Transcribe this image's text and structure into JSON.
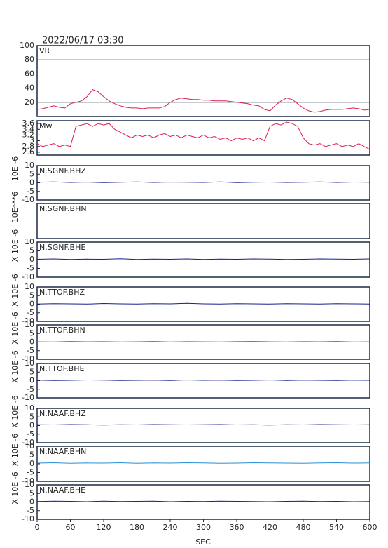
{
  "title": "2022/06/17 03:30",
  "xlabel": "SEC",
  "chart_data": [
    {
      "type": "line",
      "title": "VR",
      "xlim": [
        0,
        600
      ],
      "ylim": [
        0,
        100
      ],
      "yticks": [
        20,
        40,
        60,
        80,
        100
      ],
      "grid": true,
      "x": [
        0,
        10,
        20,
        30,
        40,
        50,
        60,
        70,
        80,
        90,
        100,
        110,
        120,
        130,
        140,
        150,
        160,
        170,
        180,
        190,
        200,
        210,
        220,
        230,
        240,
        250,
        260,
        270,
        280,
        290,
        300,
        310,
        320,
        330,
        340,
        350,
        360,
        370,
        380,
        390,
        400,
        410,
        420,
        430,
        440,
        450,
        460,
        470,
        480,
        490,
        500,
        510,
        520,
        530,
        540,
        550,
        560,
        570,
        580,
        590,
        600
      ],
      "series": [
        {
          "color": "#dc1f4b",
          "values": [
            10,
            11,
            13,
            15,
            13,
            12,
            18,
            20,
            22,
            28,
            38,
            35,
            28,
            22,
            18,
            15,
            13,
            12,
            12,
            11,
            12,
            12,
            12,
            14,
            20,
            24,
            26,
            25,
            24,
            24,
            23,
            23,
            22,
            22,
            22,
            21,
            20,
            19,
            18,
            16,
            15,
            10,
            8,
            16,
            22,
            26,
            24,
            18,
            12,
            8,
            6,
            7,
            9,
            10,
            10,
            10,
            11,
            12,
            11,
            9,
            10
          ]
        }
      ]
    },
    {
      "type": "line",
      "title": "Mw",
      "xlim": [
        0,
        600
      ],
      "ylim": [
        2.5,
        3.7
      ],
      "yticks": [
        2.6,
        2.8,
        3,
        3.2,
        3.4,
        3.6
      ],
      "grid": false,
      "x": [
        0,
        10,
        20,
        30,
        40,
        50,
        60,
        70,
        80,
        90,
        100,
        110,
        120,
        130,
        140,
        150,
        160,
        170,
        180,
        190,
        200,
        210,
        220,
        230,
        240,
        250,
        260,
        270,
        280,
        290,
        300,
        310,
        320,
        330,
        340,
        350,
        360,
        370,
        380,
        390,
        400,
        410,
        420,
        430,
        440,
        450,
        460,
        470,
        480,
        490,
        500,
        510,
        520,
        530,
        540,
        550,
        560,
        570,
        580,
        590,
        600
      ],
      "series": [
        {
          "color": "#dc1f4b",
          "values": [
            2.9,
            2.8,
            2.85,
            2.9,
            2.8,
            2.85,
            2.8,
            3.5,
            3.55,
            3.6,
            3.5,
            3.6,
            3.55,
            3.6,
            3.4,
            3.3,
            3.2,
            3.1,
            3.2,
            3.15,
            3.2,
            3.1,
            3.2,
            3.25,
            3.15,
            3.2,
            3.1,
            3.2,
            3.15,
            3.1,
            3.2,
            3.1,
            3.15,
            3.05,
            3.1,
            3,
            3.1,
            3.05,
            3.1,
            3,
            3.1,
            3,
            3.5,
            3.6,
            3.55,
            3.65,
            3.6,
            3.5,
            3.1,
            2.9,
            2.85,
            2.9,
            2.8,
            2.85,
            2.9,
            2.8,
            2.85,
            2.8,
            2.9,
            2.8,
            2.7
          ]
        }
      ]
    },
    {
      "type": "line",
      "title": "N.SGNF.BHZ",
      "ylabel": "10E -6",
      "xlim": [
        0,
        600
      ],
      "ylim": [
        -10,
        10
      ],
      "yticks": [
        -10,
        -5,
        0,
        5,
        10
      ],
      "x": [
        0,
        30,
        60,
        90,
        120,
        150,
        180,
        210,
        240,
        270,
        300,
        330,
        360,
        390,
        420,
        450,
        480,
        510,
        540,
        570,
        600
      ],
      "series": [
        {
          "color": "#1a1f8c",
          "values": [
            0.3,
            0.5,
            0.2,
            0.4,
            0.1,
            0.3,
            0.5,
            0.2,
            0.4,
            0.3,
            0.2,
            0.5,
            0.1,
            0.3,
            0.4,
            0.2,
            0.3,
            0.5,
            0.2,
            0.4,
            0.3
          ]
        }
      ]
    },
    {
      "type": "line",
      "title": "N.SGNF.BHN",
      "ylabel": "10E***6",
      "xlim": [
        0,
        600
      ]
    },
    {
      "type": "line",
      "title": "N.SGNF.BHE",
      "ylabel": "X 10E -6",
      "xlim": [
        0,
        600
      ],
      "ylim": [
        -10,
        10
      ],
      "yticks": [
        -10,
        -5,
        0,
        5,
        10
      ],
      "x": [
        0,
        30,
        60,
        90,
        120,
        150,
        180,
        210,
        240,
        270,
        300,
        330,
        360,
        390,
        420,
        450,
        480,
        510,
        540,
        570,
        600
      ],
      "series": [
        {
          "color": "#1a1f8c",
          "values": [
            0.2,
            0.4,
            0.1,
            0.3,
            0.2,
            0.5,
            0.1,
            0.3,
            0.2,
            0.4,
            0.1,
            0.3,
            0.2,
            0.4,
            0.3,
            0.1,
            0.2,
            0.4,
            0.3,
            0.2,
            0.4
          ]
        }
      ]
    },
    {
      "type": "line",
      "title": "N.TTOF.BHZ",
      "ylabel": "X 10E -6",
      "xlim": [
        0,
        600
      ],
      "ylim": [
        -10,
        10
      ],
      "yticks": [
        -10,
        -5,
        0,
        5,
        10
      ],
      "x": [
        0,
        30,
        60,
        90,
        120,
        150,
        180,
        210,
        240,
        270,
        300,
        330,
        360,
        390,
        420,
        450,
        480,
        510,
        540,
        570,
        600
      ],
      "series": [
        {
          "color": "#1a1f8c",
          "values": [
            0.1,
            0.3,
            0.2,
            0.1,
            0.4,
            0.2,
            0.1,
            0.3,
            0.2,
            0.5,
            0.2,
            0.1,
            0.3,
            0.2,
            0.1,
            0.3,
            0.2,
            0.1,
            0.3,
            0.2,
            0.1
          ]
        }
      ]
    },
    {
      "type": "line",
      "title": "N.TTOF.BHN",
      "ylabel": "X 10E -6",
      "xlim": [
        0,
        600
      ],
      "ylim": [
        -10,
        10
      ],
      "yticks": [
        -10,
        -5,
        0,
        5,
        10
      ],
      "x": [
        0,
        30,
        60,
        90,
        120,
        150,
        180,
        210,
        240,
        270,
        300,
        330,
        360,
        390,
        420,
        450,
        480,
        510,
        540,
        570,
        600
      ],
      "series": [
        {
          "color": "#2b8fd6",
          "values": [
            0.2,
            0.1,
            0.4,
            0.2,
            0.3,
            0.1,
            0.2,
            0.4,
            0.1,
            0.3,
            0.2,
            0.1,
            0.3,
            0.4,
            0.2,
            0.1,
            0.3,
            0.2,
            0.4,
            0.1,
            0.2
          ]
        }
      ]
    },
    {
      "type": "line",
      "title": "N.TTOF.BHE",
      "ylabel": "X 10E -6",
      "xlim": [
        0,
        600
      ],
      "ylim": [
        -10,
        10
      ],
      "yticks": [
        -10,
        -5,
        0,
        5,
        10
      ],
      "x": [
        0,
        30,
        60,
        90,
        120,
        150,
        180,
        210,
        240,
        270,
        300,
        330,
        360,
        390,
        420,
        450,
        480,
        510,
        540,
        570,
        600
      ],
      "series": [
        {
          "color": "#1a1f8c",
          "values": [
            0.3,
            0.1,
            0.2,
            0.4,
            0.3,
            0.1,
            0.2,
            0.3,
            0.1,
            0.4,
            0.2,
            0.3,
            0.1,
            0.2,
            0.4,
            0.1,
            0.3,
            0.2,
            0.1,
            0.3,
            0.2
          ]
        }
      ]
    },
    {
      "type": "line",
      "title": "N.NAAF.BHZ",
      "ylabel": "X 10E -6",
      "xlim": [
        0,
        600
      ],
      "ylim": [
        -10,
        10
      ],
      "yticks": [
        -10,
        -5,
        0,
        5,
        10
      ],
      "x": [
        0,
        30,
        60,
        90,
        120,
        150,
        180,
        210,
        240,
        270,
        300,
        330,
        360,
        390,
        420,
        450,
        480,
        510,
        540,
        570,
        600
      ],
      "series": [
        {
          "color": "#1a1f8c",
          "values": [
            0.5,
            0.4,
            0.6,
            0.5,
            0.3,
            0.5,
            0.4,
            0.6,
            0.5,
            0.4,
            0.5,
            0.6,
            0.4,
            0.5,
            0.3,
            0.5,
            0.4,
            0.6,
            0.5,
            0.4,
            0.5
          ]
        }
      ]
    },
    {
      "type": "line",
      "title": "N.NAAF.BHN",
      "ylabel": "X 10E -6",
      "xlim": [
        0,
        600
      ],
      "ylim": [
        -10,
        10
      ],
      "yticks": [
        -10,
        -5,
        0,
        5,
        10
      ],
      "x": [
        0,
        30,
        60,
        90,
        120,
        150,
        180,
        210,
        240,
        270,
        300,
        330,
        360,
        390,
        420,
        450,
        480,
        510,
        540,
        570,
        600
      ],
      "series": [
        {
          "color": "#2b8fd6",
          "values": [
            0.4,
            0.6,
            0.3,
            0.5,
            0.4,
            0.6,
            0.3,
            0.5,
            0.4,
            0.6,
            0.5,
            0.3,
            0.4,
            0.6,
            0.5,
            0.4,
            0.3,
            0.5,
            0.6,
            0.4,
            0.5
          ]
        }
      ]
    },
    {
      "type": "line",
      "title": "N.NAAF.BHE",
      "ylabel": "X 10E -6",
      "xlim": [
        0,
        600
      ],
      "ylim": [
        -10,
        10
      ],
      "yticks": [
        -10,
        -5,
        0,
        5,
        10
      ],
      "xticks": [
        0,
        60,
        120,
        180,
        240,
        300,
        360,
        420,
        480,
        540,
        600
      ],
      "x": [
        0,
        30,
        60,
        90,
        120,
        150,
        180,
        210,
        240,
        270,
        300,
        330,
        360,
        390,
        420,
        450,
        480,
        510,
        540,
        570,
        600
      ],
      "series": [
        {
          "color": "#1a1f8c",
          "values": [
            0.3,
            0.5,
            0.4,
            0.2,
            0.5,
            0.3,
            0.4,
            0.5,
            0.2,
            0.4,
            0.3,
            0.5,
            0.4,
            0.3,
            0.2,
            0.4,
            0.5,
            0.3,
            0.4,
            0.2,
            0.3
          ]
        }
      ]
    }
  ]
}
